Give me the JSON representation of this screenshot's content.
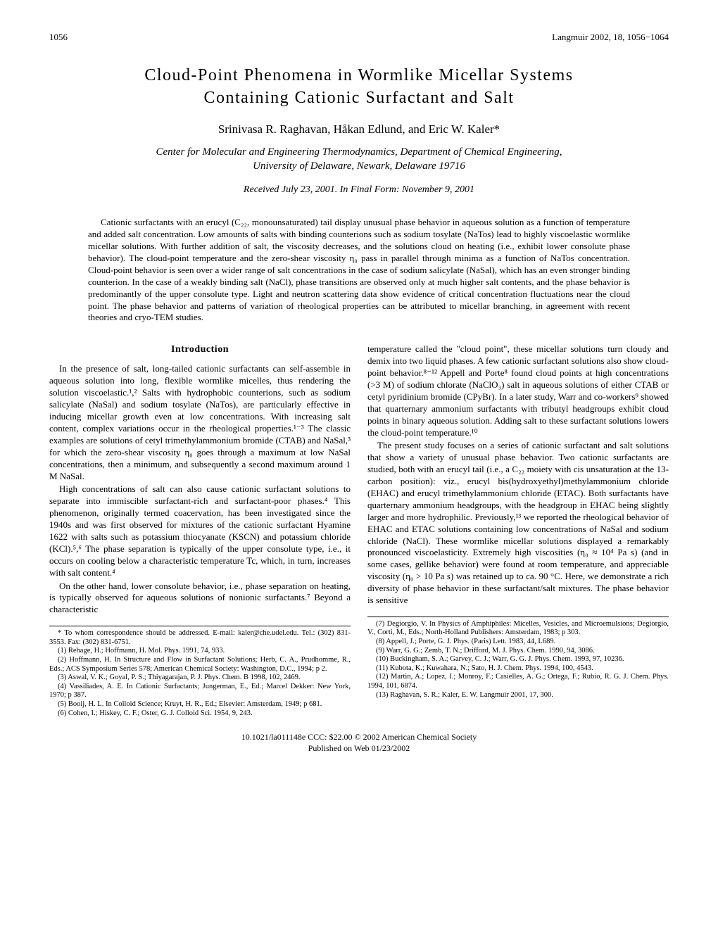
{
  "header": {
    "page_number": "1056",
    "journal_ref": "Langmuir 2002, 18, 1056−1064"
  },
  "title_line1": "Cloud-Point Phenomena in Wormlike Micellar Systems",
  "title_line2": "Containing Cationic Surfactant and Salt",
  "authors": "Srinivasa R. Raghavan, Håkan Edlund, and Eric W. Kaler*",
  "affiliation_line1": "Center for Molecular and Engineering Thermodynamics, Department of Chemical Engineering,",
  "affiliation_line2": "University of Delaware, Newark, Delaware 19716",
  "received": "Received July 23, 2001. In Final Form: November 9, 2001",
  "abstract": "Cationic surfactants with an erucyl (C₂₂, monounsaturated) tail display unusual phase behavior in aqueous solution as a function of temperature and added salt concentration. Low amounts of salts with binding counterions such as sodium tosylate (NaTos) lead to highly viscoelastic wormlike micellar solutions. With further addition of salt, the viscosity decreases, and the solutions cloud on heating (i.e., exhibit lower consolute phase behavior). The cloud-point temperature and the zero-shear viscosity η₀ pass in parallel through minima as a function of NaTos concentration. Cloud-point behavior is seen over a wider range of salt concentrations in the case of sodium salicylate (NaSal), which has an even stronger binding counterion. In the case of a weakly binding salt (NaCl), phase transitions are observed only at much higher salt contents, and the phase behavior is predominantly of the upper consolute type. Light and neutron scattering data show evidence of critical concentration fluctuations near the cloud point. The phase behavior and patterns of variation of rheological properties can be attributed to micellar branching, in agreement with recent theories and cryo-TEM studies.",
  "section_intro": "Introduction",
  "left_col": {
    "p1": "In the presence of salt, long-tailed cationic surfactants can self-assemble in aqueous solution into long, flexible wormlike micelles, thus rendering the solution viscoelastic.¹,² Salts with hydrophobic counterions, such as sodium salicylate (NaSal) and sodium tosylate (NaTos), are particularly effective in inducing micellar growth even at low concentrations. With increasing salt content, complex variations occur in the rheological properties.¹⁻³ The classic examples are solutions of cetyl trimethylammonium bromide (CTAB) and NaSal,³ for which the zero-shear viscosity η₀ goes through a maximum at low NaSal concentrations, then a minimum, and subsequently a second maximum around 1 M NaSal.",
    "p2": "High concentrations of salt can also cause cationic surfactant solutions to separate into immiscible surfactant-rich and surfactant-poor phases.⁴ This phenomenon, originally termed coacervation, has been investigated since the 1940s and was first observed for mixtures of the cationic surfactant Hyamine 1622 with salts such as potassium thiocyanate (KSCN) and potassium chloride (KCl).⁵,⁶ The phase separation is typically of the upper consolute type, i.e., it occurs on cooling below a characteristic temperature Tc, which, in turn, increases with salt content.⁴",
    "p3": "On the other hand, lower consolute behavior, i.e., phase separation on heating, is typically observed for aqueous solutions of nonionic surfactants.⁷ Beyond a characteristic"
  },
  "left_footnotes": {
    "corr": "* To whom correspondence should be addressed. E-mail: kaler@che.udel.edu. Tel.: (302) 831-3553. Fax: (302) 831-6751.",
    "f1": "(1) Rehage, H.; Hoffmann, H. Mol. Phys. 1991, 74, 933.",
    "f2": "(2) Hoffmann, H. In Structure and Flow in Surfactant Solutions; Herb, C. A., Prudhomme, R., Eds.; ACS Symposium Series 578; American Chemical Society: Washington, D.C., 1994; p 2.",
    "f3": "(3) Aswal, V. K.; Goyal, P. S.; Thiyagarajan, P. J. Phys. Chem. B 1998, 102, 2469.",
    "f4": "(4) Vassiliades, A. E. In Cationic Surfactants; Jungerman, E., Ed.; Marcel Dekker: New York, 1970; p 387.",
    "f5": "(5) Booij, H. L. In Colloid Science; Kruyt, H. R., Ed.; Elsevier: Amsterdam, 1949; p 681.",
    "f6": "(6) Cohen, I.; Hiskey, C. F.; Oster, G. J. Colloid Sci. 1954, 9, 243."
  },
  "right_col": {
    "p1": "temperature called the \"cloud point\", these micellar solutions turn cloudy and demix into two liquid phases. A few cationic surfactant solutions also show cloud-point behavior.⁸⁻¹² Appell and Porte⁸ found cloud points at high concentrations (>3 M) of sodium chlorate (NaClO₃) salt in aqueous solutions of either CTAB or cetyl pyridinium bromide (CPyBr). In a later study, Warr and co-workers⁹ showed that quarternary ammonium surfactants with tributyl headgroups exhibit cloud points in binary aqueous solution. Adding salt to these surfactant solutions lowers the cloud-point temperature.¹⁰",
    "p2": "The present study focuses on a series of cationic surfactant and salt solutions that show a variety of unusual phase behavior. Two cationic surfactants are studied, both with an erucyl tail (i.e., a C₂₂ moiety with cis unsaturation at the 13-carbon position): viz., erucyl bis(hydroxyethyl)methylammonium chloride (EHAC) and erucyl trimethylammonium chloride (ETAC). Both surfactants have quarternary ammonium headgroups, with the headgroup in EHAC being slightly larger and more hydrophilic. Previously,¹³ we reported the rheological behavior of EHAC and ETAC solutions containing low concentrations of NaSal and sodium chloride (NaCl). These wormlike micellar solutions displayed a remarkably pronounced viscoelasticity. Extremely high viscosities (η₀ ≈ 10⁴ Pa s) (and in some cases, gellike behavior) were found at room temperature, and appreciable viscosity (η₀ > 10 Pa s) was retained up to ca. 90 °C. Here, we demonstrate a rich diversity of phase behavior in these surfactant/salt mixtures. The phase behavior is sensitive"
  },
  "right_footnotes": {
    "f7": "(7) Degiorgio, V. In Physics of Amphiphiles: Micelles, Vesicles, and Microemulsions; Degiorgio, V., Corti, M., Eds.; North-Holland Publishers: Amsterdam, 1983; p 303.",
    "f8": "(8) Appell, J.; Porte, G. J. Phys. (Paris) Lett. 1983, 44, L689.",
    "f9": "(9) Warr, G. G.; Zemb, T. N.; Drifford, M. J. Phys. Chem. 1990, 94, 3086.",
    "f10": "(10) Buckingham, S. A.; Garvey, C. J.; Warr, G. G. J. Phys. Chem. 1993, 97, 10236.",
    "f11": "(11) Kubota, K.; Kuwahara, N.; Sato, H. J. Chem. Phys. 1994, 100, 4543.",
    "f12": "(12) Martin, A.; Lopez, I.; Monroy, F.; Casielles, A. G.; Ortega, F.; Rubio, R. G. J. Chem. Phys. 1994, 101, 6874.",
    "f13": "(13) Raghavan, S. R.; Kaler, E. W. Langmuir 2001, 17, 300."
  },
  "bottom": {
    "line1": "10.1021/la011148e CCC: $22.00   © 2002 American Chemical Society",
    "line2": "Published on Web 01/23/2002"
  }
}
